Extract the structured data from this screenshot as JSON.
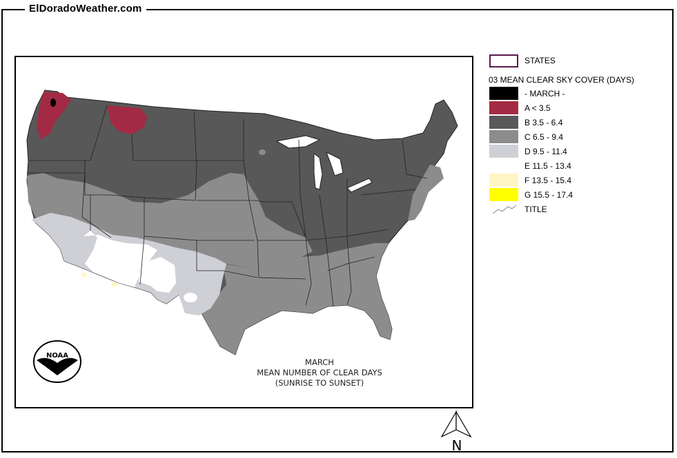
{
  "site": {
    "title": "ElDoradoWeather.com"
  },
  "map": {
    "caption_line1": "MARCH",
    "caption_line2": "MEAN NUMBER OF CLEAR DAYS",
    "caption_line3": "(SUNRISE TO SUNSET)",
    "logo_text": "NOAA",
    "north_label": "N"
  },
  "legend": {
    "states_label": "STATES",
    "heading": "03 MEAN CLEAR SKY COVER (DAYS)",
    "month_label": "- MARCH -",
    "title_label": "TITLE",
    "colors": {
      "states_outline": "#5a1a4a",
      "month": "#000000",
      "A": "#a32a44",
      "B": "#585858",
      "C": "#8c8c8c",
      "D": "#cfd0d6",
      "E": "#ffffff",
      "F": "#fff6c4",
      "G": "#ffff00"
    },
    "classes": [
      {
        "key": "A",
        "label": "A < 3.5",
        "color": "#a32a44"
      },
      {
        "key": "B",
        "label": "B 3.5 - 6.4",
        "color": "#585858"
      },
      {
        "key": "C",
        "label": "C 6.5 - 9.4",
        "color": "#8c8c8c"
      },
      {
        "key": "D",
        "label": "D 9.5 - 11.4",
        "color": "#cfd0d6"
      },
      {
        "key": "E",
        "label": "E 11.5 - 13.4",
        "color": "#ffffff"
      },
      {
        "key": "F",
        "label": "F 13.5 - 15.4",
        "color": "#fff6c4"
      },
      {
        "key": "G",
        "label": "G 15.5 - 17.4",
        "color": "#ffff00"
      }
    ]
  }
}
